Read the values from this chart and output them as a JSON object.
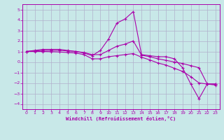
{
  "xlabel": "Windchill (Refroidissement éolien,°C)",
  "bg_color": "#c8e8e8",
  "grid_color": "#b0b0cc",
  "line_color": "#aa00aa",
  "spine_color": "#aa00aa",
  "xlim": [
    -0.5,
    23.5
  ],
  "ylim": [
    -4.5,
    5.5
  ],
  "xticks": [
    0,
    1,
    2,
    3,
    4,
    5,
    6,
    7,
    8,
    9,
    10,
    11,
    12,
    13,
    14,
    15,
    16,
    17,
    18,
    19,
    20,
    21,
    22,
    23
  ],
  "yticks": [
    -4,
    -3,
    -2,
    -1,
    0,
    1,
    2,
    3,
    4,
    5
  ],
  "line1_x": [
    0,
    1,
    2,
    3,
    4,
    5,
    6,
    7,
    8,
    9,
    10,
    11,
    12,
    13,
    14,
    15,
    16,
    17,
    18,
    19,
    20,
    21,
    22,
    23
  ],
  "line1_y": [
    1.0,
    1.1,
    1.2,
    1.2,
    1.2,
    1.1,
    1.0,
    0.85,
    0.6,
    1.1,
    2.2,
    3.7,
    4.1,
    4.8,
    0.7,
    0.6,
    0.5,
    0.5,
    0.3,
    -0.55,
    -2.1,
    -3.5,
    -2.1,
    -2.2
  ],
  "line2_x": [
    0,
    1,
    2,
    3,
    4,
    5,
    6,
    7,
    8,
    9,
    10,
    11,
    12,
    13,
    14,
    15,
    16,
    17,
    18,
    19,
    20,
    21,
    22,
    23
  ],
  "line2_y": [
    1.0,
    1.05,
    1.1,
    1.1,
    1.1,
    1.05,
    1.0,
    0.9,
    0.7,
    0.7,
    1.1,
    1.5,
    1.7,
    2.0,
    0.65,
    0.5,
    0.3,
    0.15,
    0.0,
    -0.15,
    -0.35,
    -0.55,
    -2.1,
    -2.1
  ],
  "line3_x": [
    0,
    1,
    2,
    3,
    4,
    5,
    6,
    7,
    8,
    9,
    10,
    11,
    12,
    13,
    14,
    15,
    16,
    17,
    18,
    19,
    20,
    21,
    22,
    23
  ],
  "line3_y": [
    1.0,
    1.0,
    1.0,
    0.98,
    0.95,
    0.9,
    0.85,
    0.7,
    0.3,
    0.3,
    0.5,
    0.6,
    0.7,
    0.8,
    0.45,
    0.2,
    -0.1,
    -0.3,
    -0.6,
    -0.9,
    -1.4,
    -2.0,
    -2.1,
    -2.1
  ]
}
